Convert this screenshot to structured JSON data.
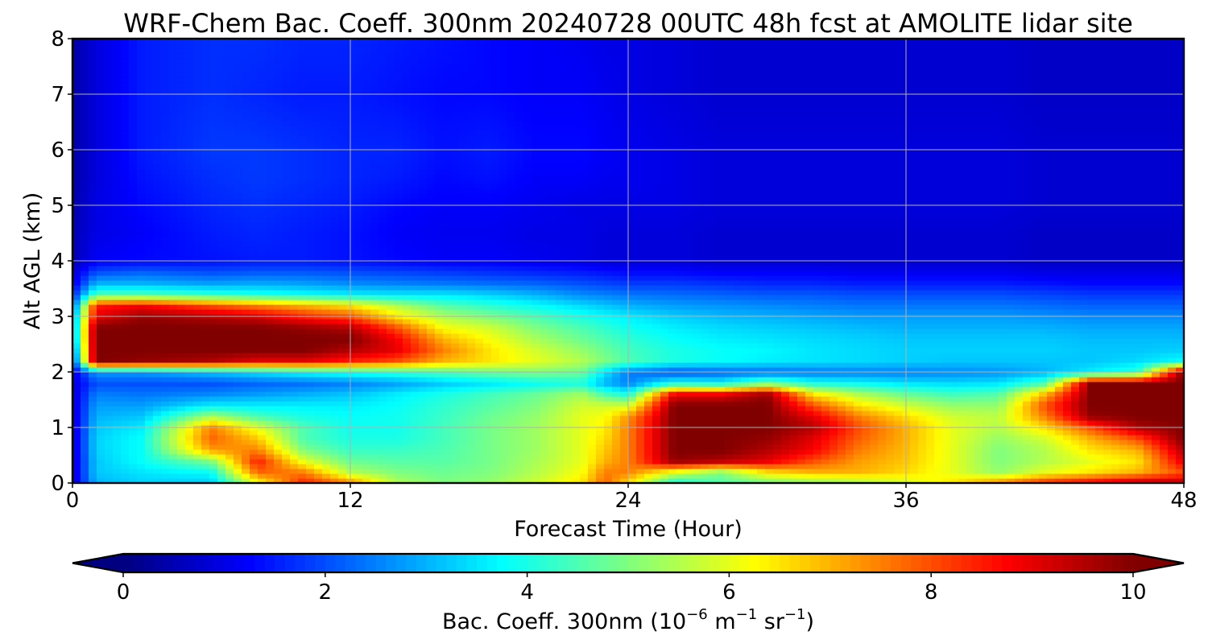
{
  "chart_data": {
    "type": "heatmap",
    "title": "WRF-Chem Bac. Coeff. 300nm  20240728 00UTC 48h fcst at AMOLITE lidar site",
    "xlabel": "Forecast Time (Hour)",
    "ylabel": "Alt AGL (km)",
    "xlim": [
      0,
      48
    ],
    "ylim": [
      0,
      8
    ],
    "xticks": [
      "0",
      "12",
      "24",
      "36",
      "48"
    ],
    "yticks": [
      "0",
      "1",
      "2",
      "3",
      "4",
      "5",
      "6",
      "7",
      "8"
    ],
    "grid": true,
    "colormap": "jet",
    "colorbar": {
      "label_main": "Bac. Coeff. 300nm  (10",
      "label_exp1": "−6",
      "label_mid": " m",
      "label_exp2": "−1",
      "label_mid2": " sr",
      "label_exp3": "−1",
      "label_end": ")",
      "range": [
        0,
        10
      ],
      "extend": "both",
      "ticks": [
        "0",
        "2",
        "4",
        "6",
        "8",
        "10"
      ],
      "orientation": "horizontal"
    },
    "x_hours": [
      0,
      1,
      3,
      6,
      8,
      10,
      12,
      14,
      16,
      18,
      20,
      22,
      23,
      24,
      26,
      28,
      30,
      32,
      34,
      36,
      38,
      40,
      42,
      44,
      46,
      48
    ],
    "z_km": [
      0.0,
      0.2,
      0.4,
      0.6,
      0.8,
      1.0,
      1.2,
      1.4,
      1.6,
      1.8,
      2.0,
      2.2,
      2.4,
      2.6,
      2.8,
      3.0,
      3.2,
      3.4,
      3.6,
      3.8,
      4.0,
      4.5,
      5.0,
      5.5,
      6.0,
      7.0,
      8.0
    ],
    "profiles": [
      [
        0.8,
        0.8,
        0.8,
        0.8,
        0.8,
        0.8,
        0.8,
        0.8,
        0.8,
        0.9,
        1.0,
        1.5,
        2.0,
        2.5,
        2.5,
        2.5,
        2.0,
        1.5,
        1.0,
        0.8,
        0.5,
        0.5,
        0.4,
        0.4,
        0.4,
        0.4,
        0.4
      ],
      [
        3.0,
        3.2,
        3.2,
        3.3,
        3.3,
        3.2,
        3.0,
        2.8,
        2.5,
        2.0,
        2.8,
        10.0,
        10.0,
        10.0,
        10.0,
        9.0,
        8.5,
        4.5,
        3.0,
        2.0,
        1.2,
        1.0,
        1.0,
        0.9,
        0.9,
        0.9,
        0.9
      ],
      [
        3.3,
        3.5,
        3.8,
        3.8,
        3.8,
        3.6,
        3.2,
        2.8,
        2.4,
        2.0,
        2.8,
        9.8,
        10.0,
        10.0,
        10.0,
        9.8,
        8.8,
        4.5,
        3.0,
        2.2,
        1.3,
        1.2,
        1.3,
        1.4,
        1.5,
        1.5,
        1.5
      ],
      [
        3.2,
        3.8,
        5.0,
        7.2,
        7.8,
        7.5,
        5.5,
        3.6,
        2.6,
        2.0,
        3.2,
        9.5,
        10.0,
        10.0,
        10.0,
        9.5,
        8.0,
        4.2,
        2.8,
        2.0,
        1.4,
        1.5,
        1.6,
        1.7,
        1.8,
        1.7,
        1.7
      ],
      [
        6.0,
        7.8,
        8.5,
        7.5,
        6.8,
        6.0,
        4.5,
        3.6,
        2.8,
        2.2,
        3.5,
        9.0,
        10.0,
        10.0,
        10.0,
        9.2,
        7.5,
        4.0,
        2.9,
        2.1,
        1.5,
        1.6,
        1.7,
        1.8,
        1.8,
        1.6,
        1.7
      ],
      [
        8.5,
        7.5,
        6.0,
        5.0,
        4.5,
        4.5,
        4.0,
        3.6,
        3.0,
        2.3,
        3.8,
        9.0,
        10.0,
        10.0,
        9.8,
        8.5,
        7.0,
        3.8,
        2.8,
        2.1,
        1.5,
        1.5,
        1.6,
        1.7,
        1.7,
        1.5,
        1.6
      ],
      [
        7.5,
        5.5,
        4.8,
        4.3,
        4.0,
        3.9,
        3.8,
        3.6,
        3.2,
        2.5,
        4.0,
        8.5,
        9.5,
        10.0,
        9.5,
        8.0,
        6.5,
        3.6,
        2.6,
        2.0,
        1.4,
        1.4,
        1.5,
        1.6,
        1.6,
        1.5,
        1.6
      ],
      [
        5.5,
        5.0,
        4.6,
        4.3,
        4.0,
        3.9,
        3.9,
        3.8,
        3.6,
        2.8,
        4.2,
        8.0,
        9.0,
        8.8,
        8.0,
        6.5,
        5.5,
        3.5,
        2.5,
        1.9,
        1.3,
        1.2,
        1.3,
        1.5,
        1.6,
        1.4,
        1.5
      ],
      [
        5.0,
        4.8,
        4.6,
        4.5,
        4.4,
        4.4,
        4.3,
        4.2,
        4.0,
        3.2,
        4.5,
        7.0,
        7.5,
        7.0,
        6.2,
        5.5,
        4.6,
        3.5,
        2.4,
        1.8,
        1.2,
        1.1,
        1.2,
        1.3,
        1.4,
        1.3,
        1.4
      ],
      [
        5.2,
        5.0,
        4.9,
        4.9,
        4.9,
        4.9,
        4.8,
        4.6,
        4.4,
        3.5,
        4.8,
        6.5,
        6.5,
        6.2,
        5.8,
        5.0,
        4.2,
        3.3,
        2.3,
        1.7,
        1.2,
        1.1,
        1.2,
        1.4,
        1.5,
        1.3,
        1.3
      ],
      [
        5.8,
        5.5,
        5.4,
        5.3,
        5.3,
        5.3,
        5.2,
        5.0,
        4.8,
        3.8,
        5.0,
        6.0,
        5.8,
        5.4,
        5.0,
        4.5,
        3.8,
        3.0,
        2.2,
        1.6,
        1.1,
        1.0,
        1.1,
        1.2,
        1.3,
        1.2,
        1.2
      ],
      [
        6.5,
        6.2,
        6.0,
        6.0,
        6.0,
        6.0,
        6.0,
        5.8,
        5.4,
        4.0,
        4.8,
        5.5,
        5.2,
        4.8,
        4.5,
        4.0,
        3.4,
        2.6,
        2.0,
        1.5,
        1.0,
        1.0,
        1.0,
        1.2,
        1.3,
        1.2,
        1.1
      ],
      [
        7.8,
        7.5,
        7.0,
        6.8,
        6.6,
        6.4,
        6.2,
        5.8,
        4.5,
        3.0,
        3.5,
        5.0,
        4.8,
        4.5,
        4.2,
        3.8,
        3.2,
        2.5,
        1.9,
        1.4,
        0.9,
        0.9,
        1.0,
        1.1,
        1.2,
        1.1,
        1.0
      ],
      [
        6.5,
        7.5,
        7.5,
        7.5,
        7.5,
        7.5,
        7.3,
        5.8,
        4.0,
        2.5,
        2.5,
        4.5,
        4.4,
        4.2,
        3.9,
        3.6,
        3.0,
        2.4,
        1.8,
        1.3,
        0.9,
        0.9,
        1.0,
        1.1,
        1.1,
        1.0,
        1.0
      ],
      [
        3.8,
        6.0,
        9.8,
        10.0,
        10.0,
        10.0,
        10.0,
        10.0,
        9.0,
        4.0,
        2.0,
        4.0,
        4.0,
        3.8,
        3.6,
        3.3,
        2.8,
        2.3,
        1.8,
        1.3,
        0.9,
        0.9,
        1.0,
        1.0,
        1.0,
        0.9,
        0.9
      ],
      [
        4.5,
        5.0,
        9.5,
        10.0,
        10.0,
        10.0,
        10.0,
        10.0,
        9.0,
        3.8,
        2.2,
        3.8,
        3.8,
        3.6,
        3.4,
        3.1,
        2.7,
        2.2,
        1.7,
        1.2,
        0.8,
        0.8,
        0.9,
        0.9,
        0.9,
        0.8,
        0.8
      ],
      [
        4.8,
        6.5,
        9.0,
        9.5,
        9.8,
        10.0,
        10.0,
        10.0,
        9.8,
        5.0,
        2.3,
        3.6,
        3.7,
        3.5,
        3.3,
        3.0,
        2.6,
        2.1,
        1.6,
        1.2,
        0.8,
        0.8,
        0.9,
        0.9,
        0.9,
        0.8,
        0.8
      ],
      [
        5.0,
        7.0,
        8.0,
        8.8,
        9.0,
        9.5,
        9.0,
        8.0,
        6.5,
        4.0,
        2.4,
        3.5,
        3.5,
        3.4,
        3.2,
        2.9,
        2.5,
        2.1,
        1.6,
        1.2,
        0.8,
        0.8,
        0.9,
        0.9,
        0.9,
        0.8,
        0.8
      ],
      [
        5.3,
        7.0,
        7.2,
        7.5,
        7.8,
        8.0,
        7.5,
        6.5,
        5.5,
        3.8,
        2.5,
        3.4,
        3.4,
        3.3,
        3.1,
        2.8,
        2.4,
        2.0,
        1.5,
        1.1,
        0.8,
        0.8,
        0.9,
        0.9,
        0.9,
        0.8,
        0.8
      ],
      [
        5.8,
        6.6,
        6.8,
        6.9,
        7.0,
        7.0,
        6.6,
        5.8,
        4.8,
        3.5,
        2.5,
        3.3,
        3.3,
        3.2,
        3.0,
        2.8,
        2.4,
        2.0,
        1.5,
        1.1,
        0.8,
        0.8,
        0.9,
        0.9,
        0.9,
        0.8,
        0.8
      ],
      [
        6.5,
        6.0,
        6.0,
        6.0,
        6.0,
        6.0,
        5.8,
        5.2,
        4.4,
        3.4,
        2.6,
        3.2,
        3.3,
        3.2,
        3.0,
        2.8,
        2.4,
        2.0,
        1.5,
        1.1,
        0.8,
        0.8,
        0.9,
        0.9,
        0.9,
        0.8,
        0.8
      ],
      [
        7.5,
        5.2,
        5.0,
        5.0,
        5.2,
        5.5,
        5.6,
        5.2,
        4.6,
        3.5,
        2.7,
        3.2,
        3.3,
        3.2,
        3.0,
        2.8,
        2.4,
        2.0,
        1.5,
        1.1,
        0.8,
        0.8,
        0.9,
        0.9,
        0.9,
        0.8,
        0.8
      ],
      [
        8.5,
        6.0,
        5.5,
        5.5,
        5.8,
        6.5,
        7.5,
        8.0,
        7.0,
        4.5,
        3.0,
        3.2,
        3.3,
        3.2,
        3.0,
        2.7,
        2.3,
        1.9,
        1.4,
        1.0,
        0.7,
        0.7,
        0.8,
        0.8,
        0.8,
        0.7,
        0.7
      ],
      [
        9.0,
        6.5,
        6.0,
        6.5,
        7.0,
        8.0,
        9.8,
        10.0,
        10.0,
        10.0,
        3.6,
        3.2,
        3.2,
        3.1,
        2.9,
        2.6,
        2.2,
        1.8,
        1.3,
        1.0,
        0.7,
        0.7,
        0.8,
        0.8,
        0.8,
        0.7,
        0.7
      ],
      [
        9.5,
        7.0,
        6.5,
        7.0,
        8.0,
        9.5,
        10.0,
        10.0,
        10.0,
        10.0,
        4.2,
        3.4,
        3.2,
        3.1,
        2.9,
        2.6,
        2.2,
        1.8,
        1.3,
        1.0,
        0.7,
        0.7,
        0.8,
        0.8,
        0.8,
        0.7,
        0.7
      ],
      [
        9.5,
        8.0,
        9.0,
        9.5,
        10.0,
        10.0,
        10.0,
        10.0,
        10.0,
        10.0,
        10.0,
        3.8,
        3.3,
        3.1,
        2.9,
        2.6,
        2.2,
        1.8,
        1.3,
        1.0,
        0.7,
        0.7,
        0.8,
        0.8,
        0.8,
        0.7,
        0.7
      ]
    ]
  }
}
